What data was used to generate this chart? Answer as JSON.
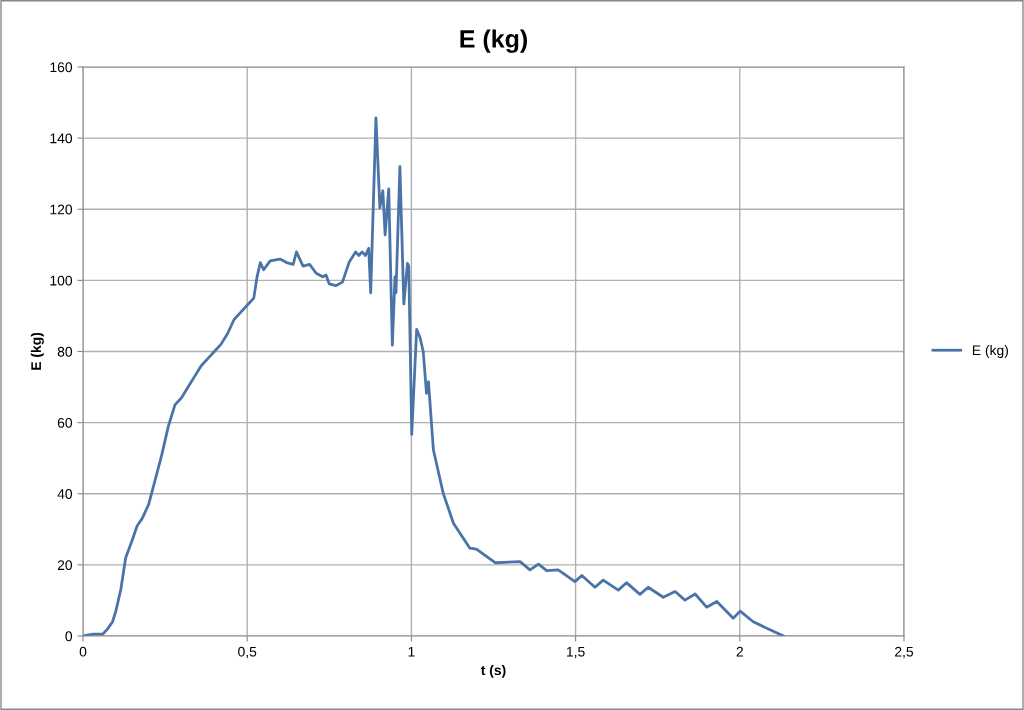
{
  "chart_data": {
    "type": "line",
    "title": "E (kg)",
    "xlabel": "t (s)",
    "ylabel": "E (kg)",
    "xlim": [
      0,
      2.5
    ],
    "ylim": [
      0,
      160
    ],
    "xticks": [
      0,
      {
        "value": 0.5,
        "label": "0,5"
      },
      1,
      {
        "value": 1.5,
        "label": "1,5"
      },
      2,
      {
        "value": 2.5,
        "label": "2,5"
      }
    ],
    "yticks": [
      0,
      20,
      40,
      60,
      80,
      100,
      120,
      140,
      160
    ],
    "grid": true,
    "legend": "right",
    "marker": "none",
    "line_style": "solid",
    "series": [
      {
        "name": "E (kg)",
        "color": "#4a74a8",
        "x": [
          0,
          0.03,
          0.06,
          0.075,
          0.09,
          0.1,
          0.115,
          0.13,
          0.15,
          0.165,
          0.18,
          0.2,
          0.22,
          0.24,
          0.26,
          0.28,
          0.3,
          0.32,
          0.34,
          0.36,
          0.38,
          0.4,
          0.42,
          0.44,
          0.46,
          0.48,
          0.5,
          0.52,
          0.53,
          0.54,
          0.55,
          0.57,
          0.6,
          0.62,
          0.64,
          0.65,
          0.67,
          0.69,
          0.71,
          0.73,
          0.74,
          0.75,
          0.77,
          0.79,
          0.81,
          0.83,
          0.84,
          0.85,
          0.86,
          0.87,
          0.876,
          0.892,
          0.904,
          0.913,
          0.92,
          0.931,
          0.942,
          0.95,
          0.953,
          0.965,
          0.977,
          0.988,
          0.992,
          1.001,
          1.016,
          1.026,
          1.036,
          1.046,
          1.052,
          1.067,
          1.097,
          1.128,
          1.178,
          1.198,
          1.255,
          1.331,
          1.361,
          1.387,
          1.412,
          1.447,
          1.498,
          1.519,
          1.559,
          1.584,
          1.63,
          1.655,
          1.696,
          1.721,
          1.767,
          1.803,
          1.833,
          1.864,
          1.899,
          1.93,
          1.98,
          2.001,
          2.041,
          2.082,
          2.133
        ],
        "values": [
          0,
          0.5,
          0.5,
          2,
          4,
          7,
          13,
          22,
          27,
          31,
          33,
          37,
          44,
          51,
          59,
          65,
          67,
          70,
          73,
          76,
          78,
          80,
          82,
          85,
          89,
          91,
          93,
          95,
          101,
          105,
          103,
          105.5,
          106,
          105,
          104.5,
          108,
          104,
          104.5,
          102,
          101,
          101.5,
          99,
          98.5,
          99.5,
          105,
          108,
          107,
          108,
          107,
          109,
          96.5,
          145.7,
          120.4,
          125.2,
          112.8,
          125.7,
          81.8,
          101,
          96.5,
          132,
          93.4,
          104.8,
          104,
          56.7,
          86.2,
          84,
          80,
          68.2,
          71.5,
          52.3,
          40.1,
          31.7,
          24.7,
          24.4,
          20.6,
          20.9,
          18.6,
          20.2,
          18.4,
          18.6,
          15.3,
          17,
          13.7,
          15.7,
          12.9,
          15,
          11.7,
          13.7,
          10.9,
          12.5,
          10.1,
          11.8,
          8.1,
          9.7,
          5,
          7,
          4,
          2.2,
          0
        ]
      }
    ]
  }
}
